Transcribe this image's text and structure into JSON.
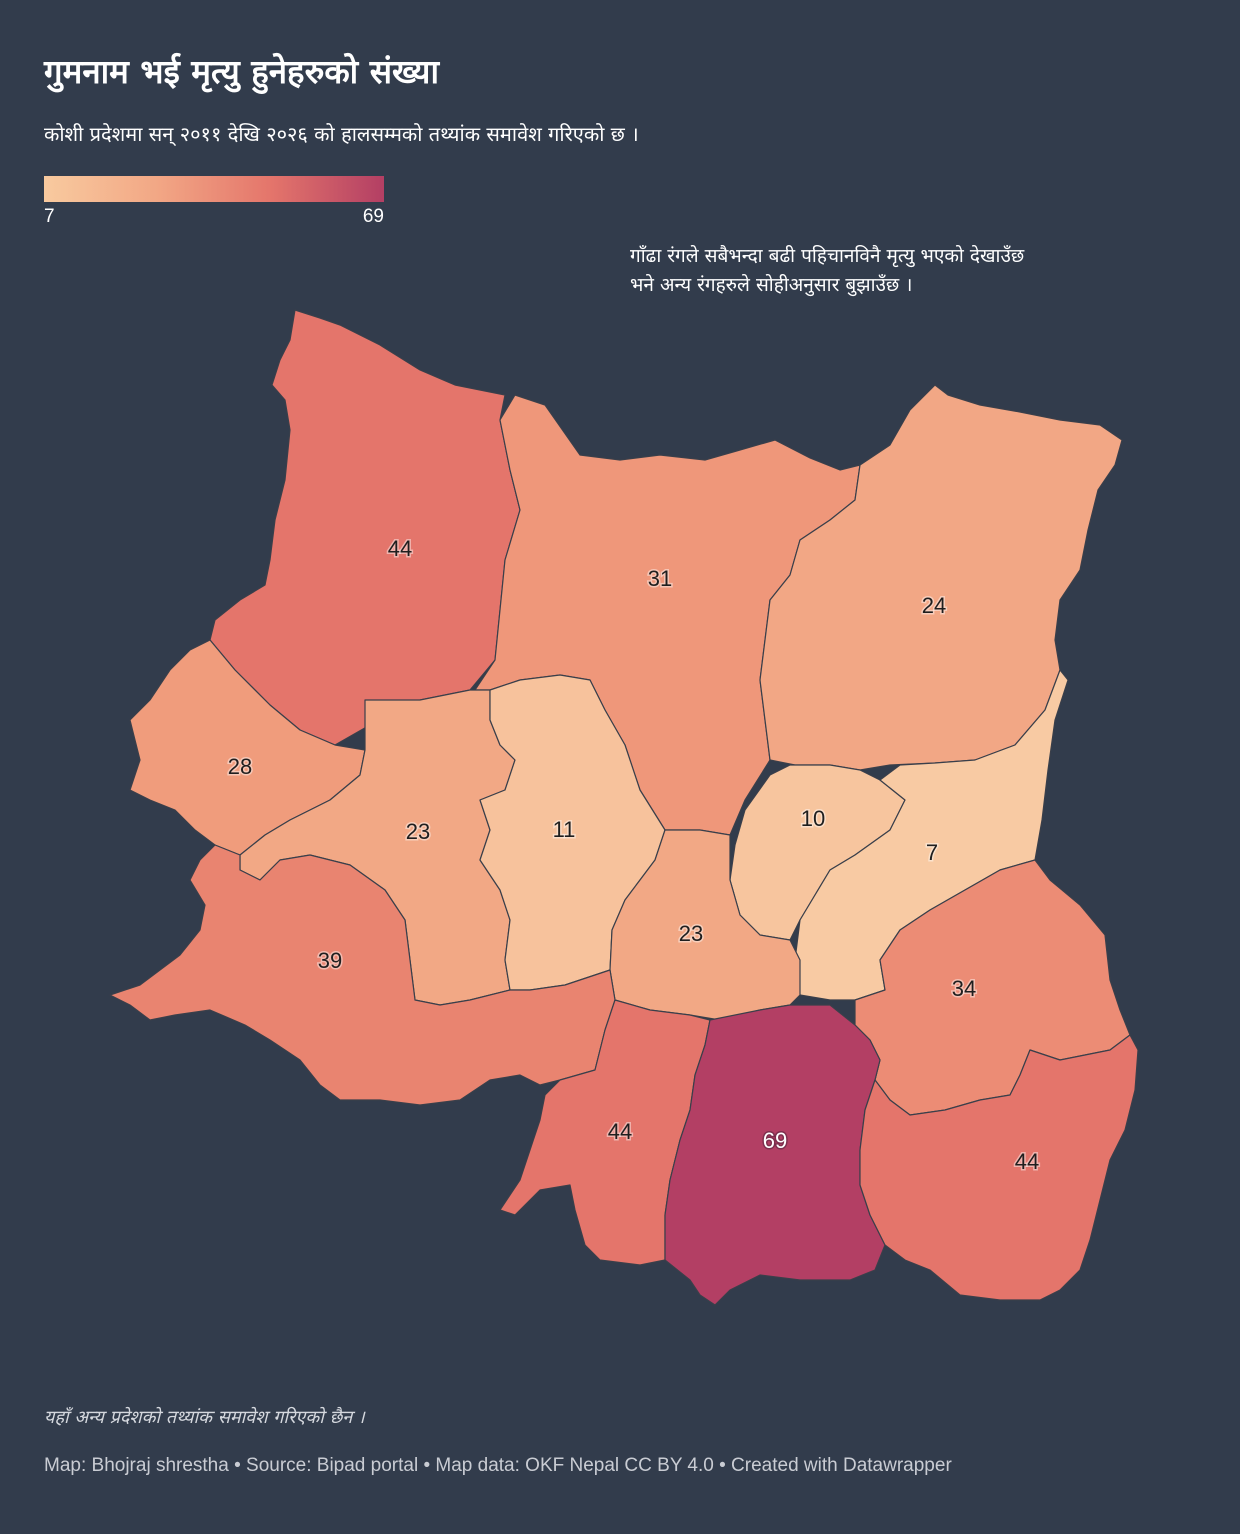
{
  "title": "गुमनाम भई मृत्यु हुनेहरुको संख्या",
  "subtitle": "कोशी प्रदेशमा सन् २०११ देखि २०२६ को हालसम्मको तथ्यांक समावेश गरिएको छ ।",
  "legend": {
    "min": "7",
    "max": "69",
    "colors": [
      "#f8ca9f",
      "#f2a785",
      "#e4756b",
      "#b33f64"
    ]
  },
  "annotation": "गाँढा रंगले सबैभन्दा बढी पहिचानविनै मृत्यु भएको देखाउँछ भने अन्य रंगहरुले सोहीअनुसार बुझाउँछ ।",
  "districts": [
    {
      "value": 44,
      "label": "44",
      "color": "#e4756b"
    },
    {
      "value": 31,
      "label": "31",
      "color": "#ef977a"
    },
    {
      "value": 24,
      "label": "24",
      "color": "#f2a785"
    },
    {
      "value": 28,
      "label": "28",
      "color": "#f09c7c"
    },
    {
      "value": 23,
      "label": "23",
      "color": "#f2a885"
    },
    {
      "value": 11,
      "label": "11",
      "color": "#f7c29c"
    },
    {
      "value": 10,
      "label": "10",
      "color": "#f7c59e"
    },
    {
      "value": 7,
      "label": "7",
      "color": "#f8caa3"
    },
    {
      "value": 23,
      "label": "23",
      "color": "#f2a885"
    },
    {
      "value": 39,
      "label": "39",
      "color": "#e98470"
    },
    {
      "value": 34,
      "label": "34",
      "color": "#ec8c75"
    },
    {
      "value": 44,
      "label": "44",
      "color": "#e4756b"
    },
    {
      "value": 69,
      "label": "69",
      "color": "#b33f64"
    },
    {
      "value": 44,
      "label": "44",
      "color": "#e4756b"
    }
  ],
  "note": "यहाँ अन्य प्रदेशको तथ्यांक समावेश गरिएको छैन ।",
  "footer": "Map: Bhojraj shrestha • Source: Bipad portal • Map data: OKF Nepal CC BY 4.0  • Created with Datawrapper"
}
